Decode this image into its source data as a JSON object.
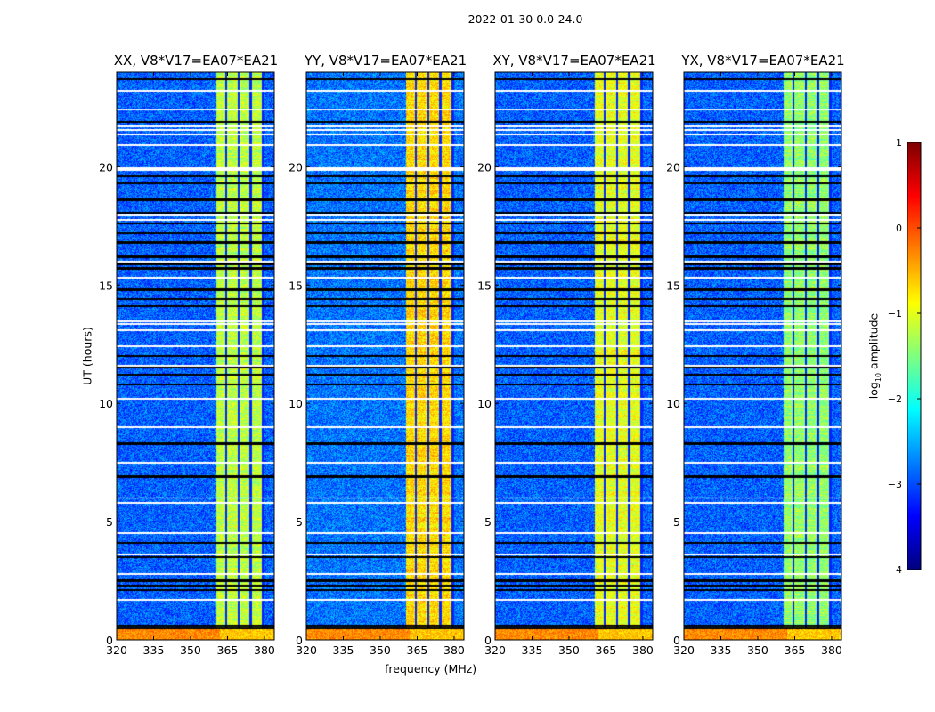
{
  "chart_data": {
    "type": "heatmap",
    "title": "2022-01-30 0.0-24.0",
    "xlabel": "frequency (MHz)",
    "ylabel": "UT (hours)",
    "xlim": [
      320,
      384
    ],
    "ylim": [
      0,
      24
    ],
    "xticks": [
      "320",
      "335",
      "350",
      "365",
      "380"
    ],
    "xtick_values": [
      320,
      335,
      350,
      365,
      380
    ],
    "yticks": [
      "0",
      "5",
      "10",
      "15",
      "20"
    ],
    "ytick_values": [
      0,
      5,
      10,
      15,
      20
    ],
    "panels": [
      {
        "title": "XX, V8*V17=EA07*EA21",
        "background_level": -2.9,
        "band_level": -1.2
      },
      {
        "title": "YY, V8*V17=EA07*EA21",
        "background_level": -2.8,
        "band_level": -0.7
      },
      {
        "title": "XY, V8*V17=EA07*EA21",
        "background_level": -2.9,
        "band_level": -1.0
      },
      {
        "title": "YX, V8*V17=EA07*EA21",
        "background_level": -2.9,
        "band_level": -1.4
      }
    ],
    "rfi_band_mhz": [
      360.5,
      380
    ],
    "band_gaps_mhz": [
      364.5,
      369.5,
      374.5,
      379.5
    ],
    "low_hours_level": -0.3,
    "low_hours_range": [
      0,
      0.45
    ],
    "flag_white_hours": [
      23.2,
      22.4,
      21.7,
      21.55,
      21.35,
      20.9,
      19.95,
      19.85,
      17.95,
      17.75,
      16.0,
      15.3,
      13.45,
      13.35,
      13.1,
      12.4,
      11.6,
      10.2,
      9.0,
      7.5,
      6.0,
      5.8,
      4.5,
      3.6,
      2.8,
      1.7
    ],
    "flag_black_hours": [
      23.7,
      21.9,
      19.6,
      19.3,
      18.6,
      18.05,
      17.6,
      17.2,
      16.8,
      16.2,
      15.9,
      15.7,
      14.8,
      14.4,
      14.1,
      12.0,
      11.5,
      11.2,
      10.8,
      8.3,
      6.9,
      4.1,
      3.5,
      2.5,
      2.3,
      2.1,
      0.6,
      0.5
    ],
    "colorbar": {
      "label": "log10 amplitude",
      "label_main": "log",
      "label_sub": "10",
      "label_rest": " amplitude",
      "range": [
        -4,
        1
      ],
      "ticks": [
        "1",
        "0",
        "−1",
        "−2",
        "−3",
        "−4"
      ],
      "tick_values": [
        1,
        0,
        -1,
        -2,
        -3,
        -4
      ],
      "colormap": "jet"
    }
  }
}
